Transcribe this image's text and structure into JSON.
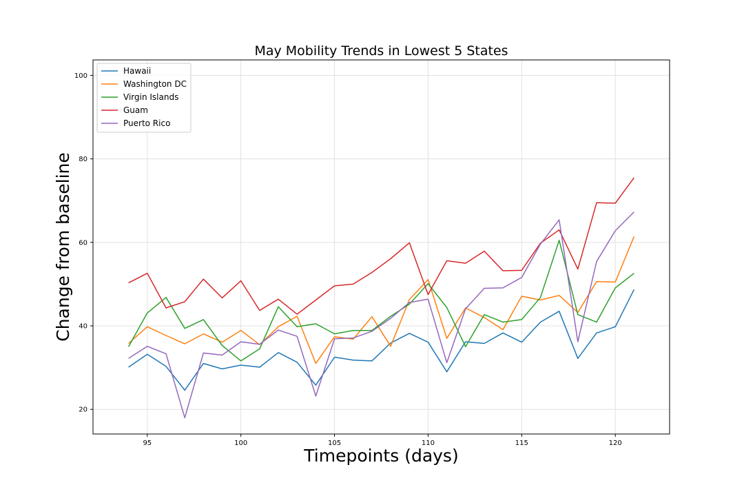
{
  "chart_data": {
    "type": "line",
    "title": "May Mobility Trends in Lowest 5 States",
    "xlabel": "Timepoints (days)",
    "ylabel": "Change from baseline",
    "xlim": [
      92.1,
      122.9
    ],
    "ylim": [
      14.1,
      103.7
    ],
    "x_ticks": [
      95,
      100,
      105,
      110,
      115,
      120
    ],
    "y_ticks": [
      20,
      40,
      60,
      80,
      100
    ],
    "grid": true,
    "legend_position": "upper left",
    "x": [
      94,
      95,
      96,
      97,
      98,
      99,
      100,
      101,
      102,
      103,
      104,
      105,
      106,
      107,
      108,
      109,
      110,
      111,
      112,
      113,
      114,
      115,
      116,
      117,
      118,
      119,
      120,
      121
    ],
    "series": [
      {
        "name": "Hawaii",
        "color": "#1f77b4",
        "values": [
          30.1,
          33.2,
          30.3,
          24.6,
          31.0,
          29.7,
          30.6,
          30.1,
          33.6,
          31.3,
          25.8,
          32.5,
          31.8,
          31.6,
          35.9,
          38.2,
          36.1,
          29.0,
          36.2,
          35.8,
          38.3,
          36.1,
          40.9,
          43.5,
          32.2,
          38.3,
          39.8,
          48.7
        ]
      },
      {
        "name": "Washington DC",
        "color": "#ff7f0e",
        "values": [
          35.8,
          39.8,
          37.7,
          35.7,
          38.1,
          36.1,
          38.9,
          35.5,
          39.8,
          42.3,
          31.0,
          37.4,
          36.8,
          42.2,
          35.1,
          46.3,
          51.1,
          37.0,
          44.3,
          42.0,
          39.1,
          47.1,
          46.2,
          47.3,
          43.2,
          50.6,
          50.5,
          61.4
        ]
      },
      {
        "name": "Virgin Islands",
        "color": "#2ca02c",
        "values": [
          35.0,
          43.1,
          46.8,
          39.4,
          41.5,
          35.3,
          31.6,
          34.5,
          44.6,
          39.8,
          40.5,
          38.1,
          38.9,
          38.9,
          42.3,
          45.2,
          50.1,
          44.4,
          35.0,
          42.7,
          40.9,
          41.5,
          46.8,
          60.5,
          42.7,
          40.9,
          49.1,
          52.6
        ]
      },
      {
        "name": "Guam",
        "color": "#d62728",
        "values": [
          50.3,
          52.6,
          44.3,
          45.8,
          51.2,
          46.7,
          50.8,
          43.7,
          46.4,
          42.8,
          46.2,
          49.6,
          50.0,
          52.8,
          56.1,
          59.9,
          47.5,
          55.6,
          55.0,
          57.9,
          53.2,
          53.3,
          59.8,
          63.0,
          53.6,
          69.5,
          69.4,
          75.5
        ]
      },
      {
        "name": "Puerto Rico",
        "color": "#9467bd",
        "values": [
          32.2,
          35.1,
          33.3,
          18.0,
          33.5,
          33.0,
          36.2,
          35.6,
          39.0,
          37.5,
          23.2,
          36.9,
          37.1,
          38.7,
          41.8,
          45.6,
          46.4,
          31.2,
          44.1,
          49.0,
          49.1,
          51.6,
          59.6,
          65.4,
          36.2,
          55.4,
          62.8,
          67.3
        ]
      }
    ]
  }
}
